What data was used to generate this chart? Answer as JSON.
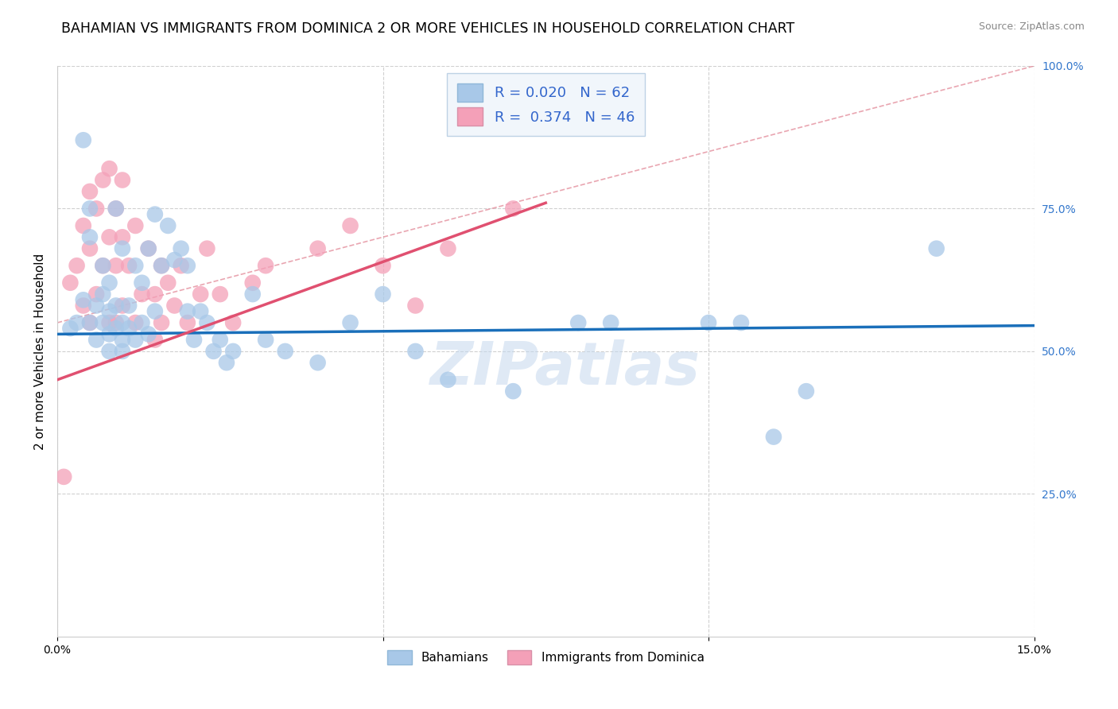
{
  "title": "BAHAMIAN VS IMMIGRANTS FROM DOMINICA 2 OR MORE VEHICLES IN HOUSEHOLD CORRELATION CHART",
  "source": "Source: ZipAtlas.com",
  "ylabel": "2 or more Vehicles in Household",
  "x_min": 0.0,
  "x_max": 15.0,
  "y_min": 0.0,
  "y_max": 100.0,
  "bahamian_R": 0.02,
  "bahamian_N": 62,
  "dominica_R": 0.374,
  "dominica_N": 46,
  "bahamian_color": "#a8c8e8",
  "dominica_color": "#f4a0b8",
  "bahamian_line_color": "#1a6fba",
  "dominica_line_color": "#e05070",
  "ref_line_color": "#e08090",
  "watermark": "ZIPatlas",
  "bahamian_x": [
    0.2,
    0.3,
    0.4,
    0.4,
    0.5,
    0.5,
    0.5,
    0.6,
    0.6,
    0.7,
    0.7,
    0.7,
    0.8,
    0.8,
    0.8,
    0.8,
    0.9,
    0.9,
    0.9,
    1.0,
    1.0,
    1.0,
    1.0,
    1.1,
    1.1,
    1.2,
    1.2,
    1.3,
    1.3,
    1.4,
    1.4,
    1.5,
    1.5,
    1.6,
    1.7,
    1.8,
    1.9,
    2.0,
    2.0,
    2.1,
    2.2,
    2.3,
    2.4,
    2.5,
    2.6,
    2.7,
    3.0,
    3.2,
    3.5,
    4.0,
    4.5,
    5.0,
    5.5,
    6.0,
    7.0,
    8.0,
    8.5,
    10.0,
    10.5,
    11.0,
    11.5,
    13.5
  ],
  "bahamian_y": [
    54,
    55,
    87,
    59,
    55,
    70,
    75,
    52,
    58,
    55,
    60,
    65,
    50,
    53,
    57,
    62,
    54,
    58,
    75,
    50,
    52,
    55,
    68,
    54,
    58,
    52,
    65,
    55,
    62,
    53,
    68,
    57,
    74,
    65,
    72,
    66,
    68,
    57,
    65,
    52,
    57,
    55,
    50,
    52,
    48,
    50,
    60,
    52,
    50,
    48,
    55,
    60,
    50,
    45,
    43,
    55,
    55,
    55,
    55,
    35,
    43,
    68
  ],
  "dominica_x": [
    0.1,
    0.2,
    0.3,
    0.4,
    0.4,
    0.5,
    0.5,
    0.5,
    0.6,
    0.6,
    0.7,
    0.7,
    0.8,
    0.8,
    0.8,
    0.9,
    0.9,
    0.9,
    1.0,
    1.0,
    1.0,
    1.1,
    1.2,
    1.2,
    1.3,
    1.4,
    1.5,
    1.5,
    1.6,
    1.6,
    1.7,
    1.8,
    1.9,
    2.0,
    2.2,
    2.3,
    2.5,
    2.7,
    3.0,
    3.2,
    4.0,
    4.5,
    5.0,
    5.5,
    6.0,
    7.0
  ],
  "dominica_y": [
    28,
    62,
    65,
    58,
    72,
    55,
    68,
    78,
    60,
    75,
    65,
    80,
    55,
    70,
    82,
    55,
    65,
    75,
    58,
    70,
    80,
    65,
    55,
    72,
    60,
    68,
    52,
    60,
    55,
    65,
    62,
    58,
    65,
    55,
    60,
    68,
    60,
    55,
    62,
    65,
    68,
    72,
    65,
    58,
    68,
    75
  ],
  "bah_line_x0": 0.0,
  "bah_line_x1": 15.0,
  "bah_line_y0": 53.0,
  "bah_line_y1": 54.5,
  "dom_line_x0": 0.0,
  "dom_line_x1": 7.5,
  "dom_line_y0": 45.0,
  "dom_line_y1": 76.0,
  "ref_line_x0": 0.0,
  "ref_line_x1": 15.0,
  "ref_line_y0": 55.0,
  "ref_line_y1": 100.0
}
